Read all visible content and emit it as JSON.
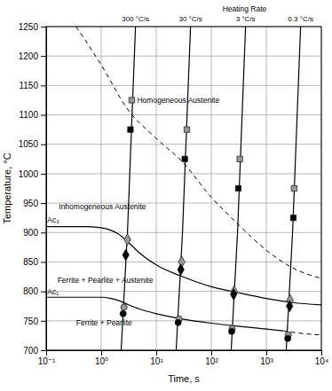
{
  "chart_data": {
    "type": "line",
    "x_label": "Time, s",
    "y_label": "Temperature, °C",
    "log": "x",
    "grid": true,
    "xlim": [
      0.1,
      10000
    ],
    "ylim": [
      700,
      1250
    ],
    "xticks": [
      {
        "value": 0.1,
        "label": "10⁻¹"
      },
      {
        "value": 1,
        "label": "10⁰"
      },
      {
        "value": 10,
        "label": "10¹"
      },
      {
        "value": 100,
        "label": "10²"
      },
      {
        "value": 1000,
        "label": "10³"
      },
      {
        "value": 10000,
        "label": "10⁴"
      }
    ],
    "yticks": [
      700,
      750,
      800,
      850,
      900,
      950,
      1000,
      1050,
      1100,
      1150,
      1200,
      1250
    ],
    "series": [
      {
        "type": "line",
        "name": "300 °C/s",
        "color": "#000000",
        "line_style": "solid",
        "x": [
          2.3,
          3.0,
          4.2
        ],
        "values": [
          700,
          900,
          1250
        ]
      },
      {
        "type": "line",
        "name": "30 °C/s",
        "color": "#000000",
        "line_style": "solid",
        "x": [
          23,
          30,
          42
        ],
        "values": [
          700,
          900,
          1250
        ]
      },
      {
        "type": "line",
        "name": "3 °C/s",
        "color": "#000000",
        "line_style": "solid",
        "x": [
          230,
          300,
          420
        ],
        "values": [
          700,
          900,
          1250
        ]
      },
      {
        "type": "line",
        "name": "0.3 °C/s",
        "color": "#000000",
        "line_style": "solid",
        "x": [
          2300,
          3000,
          4200
        ],
        "values": [
          700,
          900,
          1250
        ]
      },
      {
        "type": "line",
        "color": "#000000",
        "line_style": "dashed",
        "x": [
          0.35,
          1,
          3,
          10,
          30,
          100,
          300,
          1000,
          3000,
          10000
        ],
        "values": [
          1250,
          1185,
          1110,
          1060,
          1020,
          960,
          915,
          870,
          840,
          822
        ]
      },
      {
        "type": "line",
        "color": "#000000",
        "line_style": "solid",
        "x": [
          0.1,
          0.5,
          1,
          2,
          3,
          5,
          10,
          30,
          100,
          300,
          1000,
          3000,
          10000
        ],
        "values": [
          910,
          910,
          908,
          898,
          885,
          865,
          845,
          825,
          808,
          798,
          788,
          781,
          777
        ]
      },
      {
        "type": "line",
        "color": "#000000",
        "line_style": "solid",
        "x": [
          0.1,
          1,
          1.5,
          2,
          3,
          5,
          10,
          30,
          100,
          300,
          1000,
          2000
        ],
        "values": [
          790,
          790,
          788,
          785,
          778,
          770,
          762,
          753,
          746,
          741,
          736,
          733
        ]
      },
      {
        "type": "line",
        "color": "#000000",
        "line_style": "dashed",
        "x": [
          2000,
          5000,
          10000
        ],
        "values": [
          733,
          728,
          726
        ]
      },
      {
        "type": "scatter",
        "marker": "square",
        "color": "#999999",
        "x": [
          3.6,
          36,
          330,
          3200
        ],
        "values": [
          1125,
          1075,
          1025,
          975
        ]
      },
      {
        "type": "scatter",
        "marker": "square",
        "color": "#000000",
        "x": [
          3.4,
          33,
          310,
          3100
        ],
        "values": [
          1075,
          1025,
          975,
          925
        ]
      },
      {
        "type": "scatter",
        "marker": "diamond",
        "color": "#999999",
        "x": [
          3.0,
          29,
          260,
          2700
        ],
        "values": [
          888,
          850,
          800,
          785
        ]
      },
      {
        "type": "scatter",
        "marker": "diamond",
        "color": "#000000",
        "x": [
          2.8,
          28,
          255,
          2650
        ],
        "values": [
          862,
          837,
          795,
          775
        ]
      },
      {
        "type": "scatter",
        "marker": "circle",
        "color": "#999999",
        "x": [
          2.6,
          26,
          240,
          2500
        ],
        "values": [
          773,
          753,
          737,
          726
        ]
      },
      {
        "type": "scatter",
        "marker": "circle",
        "color": "#000000",
        "x": [
          2.5,
          25,
          235,
          2450
        ],
        "values": [
          762,
          747,
          732,
          720
        ]
      }
    ],
    "annotations": [
      {
        "text": "Homogeneous Austenite",
        "x": 4.5,
        "y": 1120
      },
      {
        "text": "Inhomogeneous Austenite",
        "x": 0.17,
        "y": 940
      },
      {
        "text": "Ac₃",
        "x": 0.105,
        "y": 917
      },
      {
        "text": "Ferrite + Pearlite + Austenite",
        "x": 0.16,
        "y": 815
      },
      {
        "text": "Ac₁",
        "x": 0.105,
        "y": 795
      },
      {
        "text": "Ferrite + Pearlite",
        "x": 0.35,
        "y": 742
      },
      {
        "text": "Heating Rate",
        "x": 160,
        "y": 1276
      }
    ]
  }
}
